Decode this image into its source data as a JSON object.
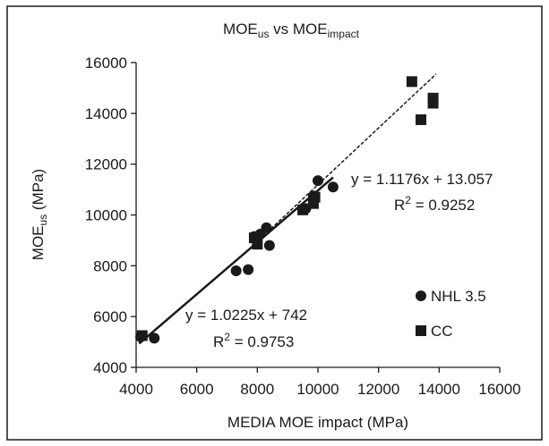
{
  "chart_data": {
    "type": "scatter",
    "title": {
      "main": "MOE",
      "main_sub": "us",
      "mid": " vs MOE",
      "end_sub": "impact"
    },
    "xlabel": "MEDIA MOE impact (MPa)",
    "ylabel": {
      "main": "MOE",
      "sub": "us",
      "end": " (MPa)"
    },
    "xlim": [
      4000,
      16000
    ],
    "ylim": [
      4000,
      16000
    ],
    "xticks": [
      4000,
      6000,
      8000,
      10000,
      12000,
      14000,
      16000
    ],
    "yticks": [
      4000,
      6000,
      8000,
      10000,
      12000,
      14000,
      16000
    ],
    "grid": false,
    "legend_position": "right",
    "series": [
      {
        "name": "NHL 3.5",
        "marker": "circle",
        "color": "#1a1a1a",
        "points": [
          [
            4150,
            5200
          ],
          [
            4600,
            5150
          ],
          [
            7300,
            7800
          ],
          [
            7700,
            7850
          ],
          [
            7900,
            9150
          ],
          [
            8100,
            9250
          ],
          [
            8300,
            9500
          ],
          [
            8400,
            8800
          ],
          [
            9600,
            10250
          ],
          [
            9850,
            10750
          ],
          [
            10000,
            11350
          ],
          [
            10500,
            11100
          ]
        ],
        "fit": {
          "slope": 1.0225,
          "intercept": 742,
          "x_range": [
            4100,
            10500
          ],
          "style": "solid",
          "equation": "y = 1.0225x + 742",
          "r2_label": "R",
          "r2_sup": "2",
          "r2_value": " = 0.9753"
        }
      },
      {
        "name": "CC",
        "marker": "square",
        "color": "#1a1a1a",
        "points": [
          [
            4200,
            5250
          ],
          [
            7900,
            9100
          ],
          [
            8000,
            8850
          ],
          [
            9500,
            10200
          ],
          [
            9850,
            10450
          ],
          [
            9900,
            10700
          ],
          [
            13100,
            15250
          ],
          [
            13400,
            13750
          ],
          [
            13800,
            14400
          ],
          [
            13800,
            14600
          ]
        ],
        "fit": {
          "slope": 1.1176,
          "intercept": 13.057,
          "x_range": [
            7800,
            13900
          ],
          "style": "dashed",
          "equation": "y = 1.1176x + 13.057",
          "r2_label": "R",
          "r2_sup": "2",
          "r2_value": " = 0.9252"
        }
      }
    ]
  }
}
